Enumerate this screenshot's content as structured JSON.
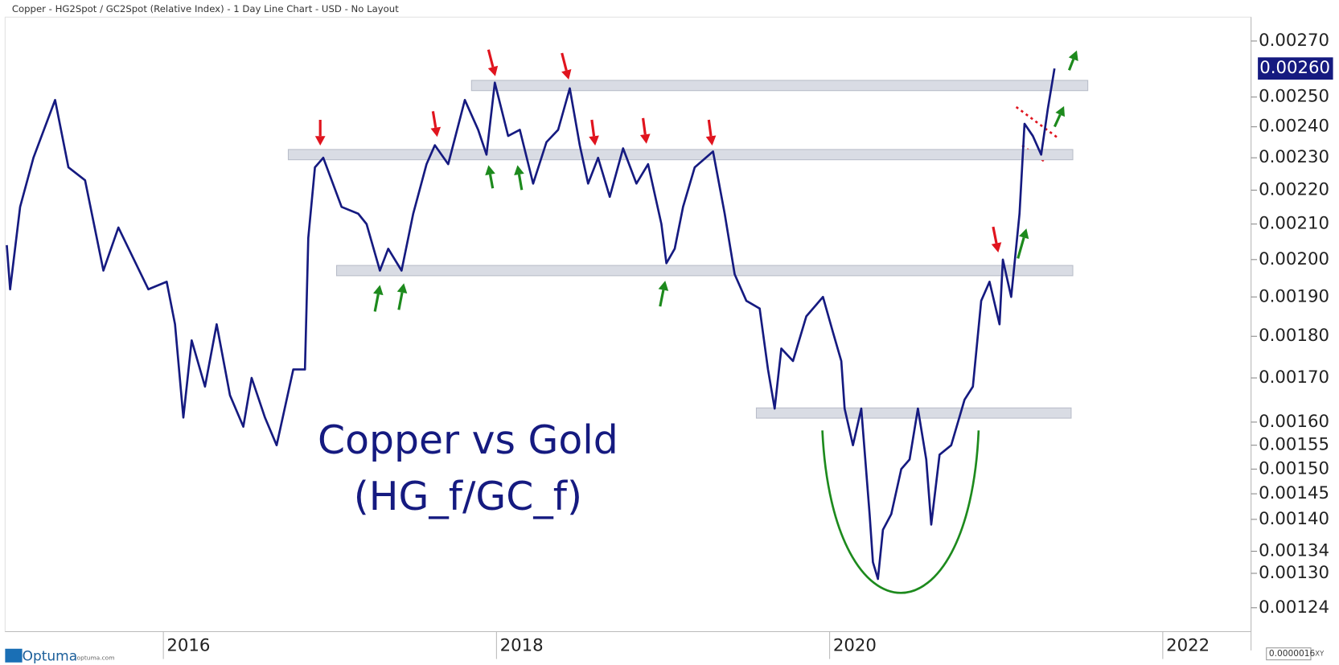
{
  "chart_data": {
    "type": "line",
    "title": "Copper - HG2Spot / GC2Spot (Relative Index) - 1 Day Line Chart - USD - No Layout",
    "annotations": [
      "Copper vs Gold",
      "(HG_f/GC_f)"
    ],
    "logo": "Optuma",
    "logo_url": "optuma.com",
    "scale_box": "0.0000016",
    "scale_mode": "XY",
    "color": "#151a80",
    "log_scale": true,
    "grid": false,
    "xlim": [
      2015.05,
      2022.53
    ],
    "xticks": [
      2016,
      2018,
      2020,
      2022
    ],
    "ylim": [
      0.0012,
      0.00279
    ],
    "yticks": [
      {
        "value": 0.0027,
        "label": "0.00270"
      },
      {
        "value": 0.0025,
        "label": "0.00250"
      },
      {
        "value": 0.0024,
        "label": "0.00240"
      },
      {
        "value": 0.0023,
        "label": "0.00230"
      },
      {
        "value": 0.0022,
        "label": "0.00220"
      },
      {
        "value": 0.0021,
        "label": "0.00210"
      },
      {
        "value": 0.002,
        "label": "0.00200"
      },
      {
        "value": 0.0019,
        "label": "0.00190"
      },
      {
        "value": 0.0018,
        "label": "0.00180"
      },
      {
        "value": 0.0017,
        "label": "0.00170"
      },
      {
        "value": 0.0016,
        "label": "0.00160"
      },
      {
        "value": 0.00155,
        "label": "0.00155"
      },
      {
        "value": 0.0015,
        "label": "0.00150"
      },
      {
        "value": 0.00145,
        "label": "0.00145"
      },
      {
        "value": 0.0014,
        "label": "0.00140"
      },
      {
        "value": 0.00134,
        "label": "0.00134"
      },
      {
        "value": 0.0013,
        "label": "0.00130"
      },
      {
        "value": 0.00124,
        "label": "0.00124"
      }
    ],
    "last_value_label": "0.00260",
    "bands": [
      {
        "x": [
          2017.85,
          2021.55
        ],
        "value": 0.00254
      },
      {
        "x": [
          2016.75,
          2021.46
        ],
        "value": 0.00231
      },
      {
        "x": [
          2017.04,
          2021.46
        ],
        "value": 0.00197
      },
      {
        "x": [
          2019.56,
          2021.45
        ],
        "value": 0.00162
      }
    ],
    "x": [
      2015.06,
      2015.08,
      2015.14,
      2015.22,
      2015.35,
      2015.43,
      2015.53,
      2015.64,
      2015.73,
      2015.91,
      2016.02,
      2016.07,
      2016.12,
      2016.17,
      2016.25,
      2016.32,
      2016.4,
      2016.48,
      2016.53,
      2016.61,
      2016.68,
      2016.78,
      2016.85,
      2016.87,
      2016.91,
      2016.96,
      2017.07,
      2017.17,
      2017.22,
      2017.3,
      2017.35,
      2017.43,
      2017.5,
      2017.58,
      2017.63,
      2017.71,
      2017.81,
      2017.89,
      2017.94,
      2017.99,
      2018.07,
      2018.14,
      2018.22,
      2018.3,
      2018.37,
      2018.44,
      2018.5,
      2018.55,
      2018.61,
      2018.68,
      2018.76,
      2018.84,
      2018.91,
      2018.99,
      2019.02,
      2019.07,
      2019.12,
      2019.19,
      2019.3,
      2019.37,
      2019.43,
      2019.5,
      2019.58,
      2019.63,
      2019.67,
      2019.71,
      2019.78,
      2019.86,
      2019.96,
      2020.02,
      2020.07,
      2020.09,
      2020.14,
      2020.19,
      2020.24,
      2020.26,
      2020.29,
      2020.32,
      2020.37,
      2020.43,
      2020.48,
      2020.53,
      2020.58,
      2020.61,
      2020.66,
      2020.73,
      2020.81,
      2020.86,
      2020.91,
      2020.96,
      2021.02,
      2021.04,
      2021.09,
      2021.14,
      2021.17,
      2021.22,
      2021.27,
      2021.31,
      2021.35
    ],
    "values": [
      0.00204,
      0.00192,
      0.00215,
      0.0023,
      0.00249,
      0.00227,
      0.00223,
      0.00197,
      0.00209,
      0.00192,
      0.00194,
      0.00183,
      0.00161,
      0.00179,
      0.00168,
      0.00183,
      0.00166,
      0.00159,
      0.0017,
      0.00161,
      0.00155,
      0.00172,
      0.00172,
      0.00206,
      0.00227,
      0.0023,
      0.00215,
      0.00213,
      0.0021,
      0.00197,
      0.00203,
      0.00197,
      0.00213,
      0.00228,
      0.00234,
      0.00228,
      0.00249,
      0.00239,
      0.00231,
      0.00255,
      0.00237,
      0.00239,
      0.00222,
      0.00235,
      0.00239,
      0.00253,
      0.00234,
      0.00222,
      0.0023,
      0.00218,
      0.00233,
      0.00222,
      0.00228,
      0.0021,
      0.00199,
      0.00203,
      0.00215,
      0.00227,
      0.00232,
      0.00213,
      0.00196,
      0.00189,
      0.00187,
      0.00172,
      0.00163,
      0.00177,
      0.00174,
      0.00185,
      0.0019,
      0.00181,
      0.00174,
      0.00163,
      0.00155,
      0.00163,
      0.00141,
      0.00132,
      0.00129,
      0.00138,
      0.00141,
      0.0015,
      0.00152,
      0.00163,
      0.00152,
      0.00139,
      0.00153,
      0.00155,
      0.00165,
      0.00168,
      0.00189,
      0.00194,
      0.00183,
      0.002,
      0.0019,
      0.00213,
      0.00241,
      0.00237,
      0.00231,
      0.00246,
      0.0026
    ]
  }
}
